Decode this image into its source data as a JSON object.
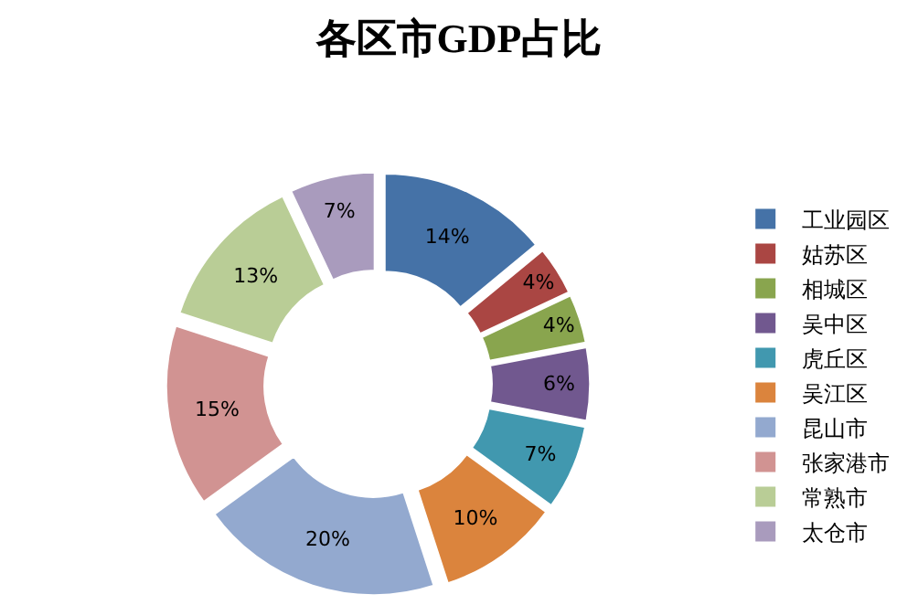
{
  "chart_data": {
    "type": "donut",
    "title": "各区市GDP占比",
    "categories": [
      "工业园区",
      "姑苏区",
      "相城区",
      "吴中区",
      "虎丘区",
      "吴江区",
      "昆山市",
      "张家港市",
      "常熟市",
      "太仓市"
    ],
    "values": [
      14,
      4,
      4,
      6,
      7,
      10,
      20,
      15,
      13,
      7
    ],
    "value_labels": [
      "14%",
      "4%",
      "4%",
      "6%",
      "7%",
      "10%",
      "20%",
      "15%",
      "13%",
      "7%"
    ],
    "colors": [
      "#4572a7",
      "#aa4643",
      "#89a54e",
      "#71588f",
      "#4198af",
      "#db843d",
      "#93a9cf",
      "#d19392",
      "#b9cd96",
      "#a99bbd"
    ],
    "legend": "right"
  }
}
